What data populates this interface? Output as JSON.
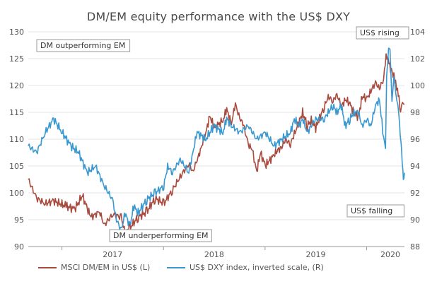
{
  "chart_data": {
    "type": "line",
    "title": "DM/EM equity performance with the US$ DXY",
    "x_ticks": [
      "2017",
      "2018",
      "2019",
      "2020"
    ],
    "x_range": [
      "2016-09-01",
      "2020-05-15"
    ],
    "y_left": {
      "lim": [
        90,
        130
      ],
      "ticks": [
        90,
        95,
        100,
        105,
        110,
        115,
        120,
        125,
        130
      ]
    },
    "y_right": {
      "lim": [
        88,
        104
      ],
      "ticks": [
        88,
        90,
        92,
        94,
        96,
        98,
        100,
        102,
        104
      ],
      "scale": "inverted"
    },
    "annotations": {
      "top_left": "DM outperforming EM",
      "bottom_middle": "DM underperforming EM",
      "top_right": "US$ rising",
      "bottom_right": "US$ falling"
    },
    "legend_placement": "bottom",
    "series": [
      {
        "name": "MSCI DM/EM in US$ (L)",
        "axis": "left",
        "color": "#a94a3e",
        "points": [
          [
            "2016-09-01",
            102.5
          ],
          [
            "2016-10-01",
            99.0
          ],
          [
            "2016-11-01",
            98.0
          ],
          [
            "2016-12-01",
            98.5
          ],
          [
            "2017-01-15",
            97.5
          ],
          [
            "2017-02-15",
            97.0
          ],
          [
            "2017-03-15",
            99.5
          ],
          [
            "2017-04-01",
            97.0
          ],
          [
            "2017-04-15",
            95.5
          ],
          [
            "2017-05-15",
            96.5
          ],
          [
            "2017-06-01",
            94.0
          ],
          [
            "2017-07-01",
            96.0
          ],
          [
            "2017-08-01",
            95.5
          ],
          [
            "2017-08-15",
            92.5
          ],
          [
            "2017-09-01",
            93.5
          ],
          [
            "2017-10-01",
            95.5
          ],
          [
            "2017-11-01",
            96.5
          ],
          [
            "2017-12-01",
            99.0
          ],
          [
            "2018-01-01",
            98.0
          ],
          [
            "2018-02-01",
            100.5
          ],
          [
            "2018-03-01",
            103.0
          ],
          [
            "2018-04-01",
            105.5
          ],
          [
            "2018-04-15",
            104.0
          ],
          [
            "2018-05-01",
            106.0
          ],
          [
            "2018-05-15",
            108.5
          ],
          [
            "2018-06-01",
            111.0
          ],
          [
            "2018-06-15",
            114.5
          ],
          [
            "2018-07-01",
            112.0
          ],
          [
            "2018-08-01",
            113.5
          ],
          [
            "2018-08-15",
            115.5
          ],
          [
            "2018-09-01",
            113.0
          ],
          [
            "2018-09-15",
            116.5
          ],
          [
            "2018-10-01",
            114.0
          ],
          [
            "2018-10-15",
            112.5
          ],
          [
            "2018-11-01",
            109.0
          ],
          [
            "2018-11-15",
            108.0
          ],
          [
            "2018-12-01",
            104.0
          ],
          [
            "2018-12-15",
            107.5
          ],
          [
            "2019-01-01",
            105.0
          ],
          [
            "2019-01-15",
            106.0
          ],
          [
            "2019-02-01",
            107.0
          ],
          [
            "2019-02-15",
            108.0
          ],
          [
            "2019-03-01",
            108.5
          ],
          [
            "2019-03-15",
            110.0
          ],
          [
            "2019-04-01",
            109.0
          ],
          [
            "2019-04-15",
            111.0
          ],
          [
            "2019-05-01",
            113.0
          ],
          [
            "2019-05-15",
            115.0
          ],
          [
            "2019-06-01",
            112.5
          ],
          [
            "2019-06-15",
            113.5
          ],
          [
            "2019-07-01",
            112.0
          ],
          [
            "2019-07-15",
            114.0
          ],
          [
            "2019-08-01",
            116.0
          ],
          [
            "2019-08-15",
            118.0
          ],
          [
            "2019-09-01",
            117.0
          ],
          [
            "2019-09-15",
            118.5
          ],
          [
            "2019-10-01",
            116.0
          ],
          [
            "2019-10-15",
            117.5
          ],
          [
            "2019-11-01",
            116.5
          ],
          [
            "2019-11-15",
            115.0
          ],
          [
            "2019-12-01",
            114.0
          ],
          [
            "2019-12-15",
            118.0
          ],
          [
            "2020-01-01",
            117.5
          ],
          [
            "2020-01-15",
            119.0
          ],
          [
            "2020-02-01",
            120.5
          ],
          [
            "2020-02-15",
            119.5
          ],
          [
            "2020-03-01",
            121.0
          ],
          [
            "2020-03-10",
            126.0
          ],
          [
            "2020-03-20",
            124.0
          ],
          [
            "2020-04-01",
            122.5
          ],
          [
            "2020-04-10",
            121.0
          ],
          [
            "2020-04-20",
            119.5
          ],
          [
            "2020-05-01",
            115.0
          ],
          [
            "2020-05-08",
            117.0
          ],
          [
            "2020-05-15",
            116.5
          ]
        ]
      },
      {
        "name": "US$ DXY index, inverted scale, (R)",
        "axis": "right",
        "color": "#3a98d0",
        "points": [
          [
            "2016-09-01",
            95.5
          ],
          [
            "2016-10-01",
            95.0
          ],
          [
            "2016-11-01",
            96.5
          ],
          [
            "2016-12-01",
            97.5
          ],
          [
            "2017-01-01",
            96.5
          ],
          [
            "2017-02-01",
            95.5
          ],
          [
            "2017-03-01",
            95.0
          ],
          [
            "2017-04-01",
            93.5
          ],
          [
            "2017-05-01",
            94.0
          ],
          [
            "2017-06-01",
            92.5
          ],
          [
            "2017-07-01",
            91.5
          ],
          [
            "2017-07-15",
            90.0
          ],
          [
            "2017-08-01",
            89.2
          ],
          [
            "2017-08-15",
            90.5
          ],
          [
            "2017-09-01",
            89.5
          ],
          [
            "2017-09-15",
            91.0
          ],
          [
            "2017-10-01",
            90.5
          ],
          [
            "2017-11-01",
            91.5
          ],
          [
            "2017-12-01",
            92.0
          ],
          [
            "2018-01-01",
            92.5
          ],
          [
            "2018-01-15",
            94.0
          ],
          [
            "2018-02-01",
            93.5
          ],
          [
            "2018-03-01",
            94.5
          ],
          [
            "2018-04-01",
            93.5
          ],
          [
            "2018-04-15",
            95.0
          ],
          [
            "2018-05-01",
            96.5
          ],
          [
            "2018-06-01",
            96.0
          ],
          [
            "2018-07-01",
            97.0
          ],
          [
            "2018-08-01",
            96.5
          ],
          [
            "2018-08-15",
            97.5
          ],
          [
            "2018-09-01",
            97.0
          ],
          [
            "2018-10-01",
            96.5
          ],
          [
            "2018-11-01",
            97.0
          ],
          [
            "2018-12-01",
            96.0
          ],
          [
            "2019-01-01",
            96.5
          ],
          [
            "2019-02-01",
            95.5
          ],
          [
            "2019-03-01",
            96.0
          ],
          [
            "2019-04-01",
            96.5
          ],
          [
            "2019-04-15",
            97.5
          ],
          [
            "2019-05-01",
            97.0
          ],
          [
            "2019-05-15",
            97.5
          ],
          [
            "2019-06-01",
            96.5
          ],
          [
            "2019-06-15",
            97.0
          ],
          [
            "2019-07-01",
            97.5
          ],
          [
            "2019-08-01",
            97.5
          ],
          [
            "2019-08-15",
            98.0
          ],
          [
            "2019-09-01",
            98.5
          ],
          [
            "2019-09-15",
            98.0
          ],
          [
            "2019-10-01",
            98.5
          ],
          [
            "2019-10-15",
            97.0
          ],
          [
            "2019-11-01",
            97.5
          ],
          [
            "2019-11-15",
            98.0
          ],
          [
            "2019-12-01",
            98.0
          ],
          [
            "2019-12-15",
            97.0
          ],
          [
            "2020-01-01",
            97.5
          ],
          [
            "2020-01-15",
            97.0
          ],
          [
            "2020-02-01",
            98.5
          ],
          [
            "2020-02-15",
            99.0
          ],
          [
            "2020-03-01",
            96.0
          ],
          [
            "2020-03-08",
            95.5
          ],
          [
            "2020-03-12",
            100.5
          ],
          [
            "2020-03-19",
            103.0
          ],
          [
            "2020-03-24",
            102.5
          ],
          [
            "2020-03-31",
            99.0
          ],
          [
            "2020-04-07",
            100.5
          ],
          [
            "2020-04-14",
            99.5
          ],
          [
            "2020-04-21",
            98.5
          ],
          [
            "2020-04-28",
            97.0
          ],
          [
            "2020-05-01",
            96.0
          ],
          [
            "2020-05-05",
            95.0
          ],
          [
            "2020-05-08",
            94.0
          ],
          [
            "2020-05-11",
            93.0
          ],
          [
            "2020-05-15",
            93.5
          ]
        ]
      }
    ]
  }
}
